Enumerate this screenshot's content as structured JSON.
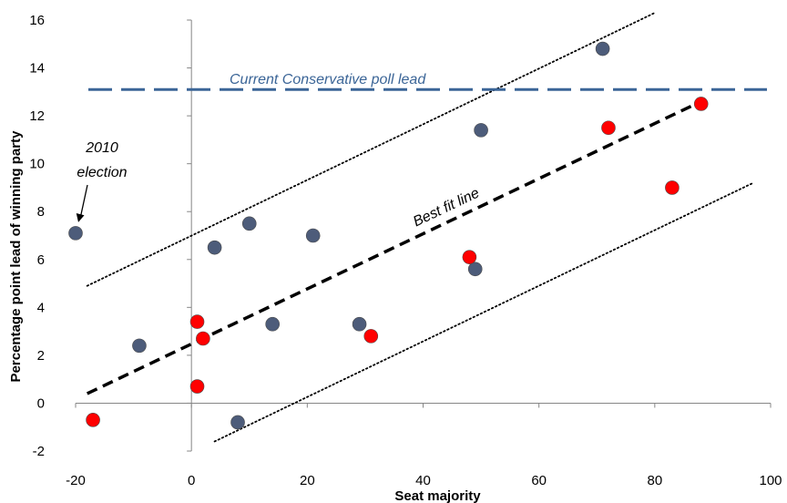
{
  "chart_data": {
    "type": "scatter",
    "title": "",
    "xlabel": "Seat majority",
    "ylabel": "Percentage point lead of winning party",
    "xlim": [
      -20,
      100
    ],
    "ylim": [
      -2,
      16
    ],
    "x_ticks": [
      "-20",
      "0",
      "20",
      "40",
      "60",
      "80",
      "100"
    ],
    "y_ticks": [
      "-2",
      "0",
      "2",
      "4",
      "6",
      "8",
      "10",
      "12",
      "14",
      "16"
    ],
    "grid": false,
    "colors": {
      "blue_points": "#4d5c7a",
      "red_points": "#ff0000",
      "poll_line": "#3b6597",
      "fit_line": "#000000"
    },
    "series": [
      {
        "color_key": "blue_points",
        "points": [
          {
            "x": -20,
            "y": 7.1
          },
          {
            "x": -9,
            "y": 2.4
          },
          {
            "x": 4,
            "y": 6.5
          },
          {
            "x": 8,
            "y": -0.8
          },
          {
            "x": 10,
            "y": 7.5
          },
          {
            "x": 14,
            "y": 3.3
          },
          {
            "x": 21,
            "y": 7.0
          },
          {
            "x": 29,
            "y": 3.3
          },
          {
            "x": 49,
            "y": 5.6
          },
          {
            "x": 50,
            "y": 11.4
          },
          {
            "x": 71,
            "y": 14.8
          }
        ]
      },
      {
        "color_key": "red_points",
        "points": [
          {
            "x": -17,
            "y": -0.7
          },
          {
            "x": 1,
            "y": 3.4
          },
          {
            "x": 1,
            "y": 0.7
          },
          {
            "x": 2,
            "y": 2.7
          },
          {
            "x": 31,
            "y": 2.8
          },
          {
            "x": 48,
            "y": 6.1
          },
          {
            "x": 72,
            "y": 11.5
          },
          {
            "x": 83,
            "y": 9.0
          },
          {
            "x": 88,
            "y": 12.5
          }
        ]
      }
    ],
    "reference_lines": {
      "poll_lead": {
        "y": 13.1,
        "label": "Current Conservative poll lead"
      },
      "best_fit": {
        "x1": -18,
        "y1": 0.4,
        "x2": 88,
        "y2": 12.6,
        "label": "Best fit line"
      },
      "upper_band": {
        "x1": -18,
        "y1": 4.9,
        "x2": 80,
        "y2": 16.3
      },
      "lower_band": {
        "x1": 4,
        "y1": -1.6,
        "x2": 97,
        "y2": 9.2
      }
    },
    "annotations": [
      {
        "text_line1": "2010",
        "text_line2": "election",
        "x": -20,
        "y": 7.1
      }
    ]
  }
}
